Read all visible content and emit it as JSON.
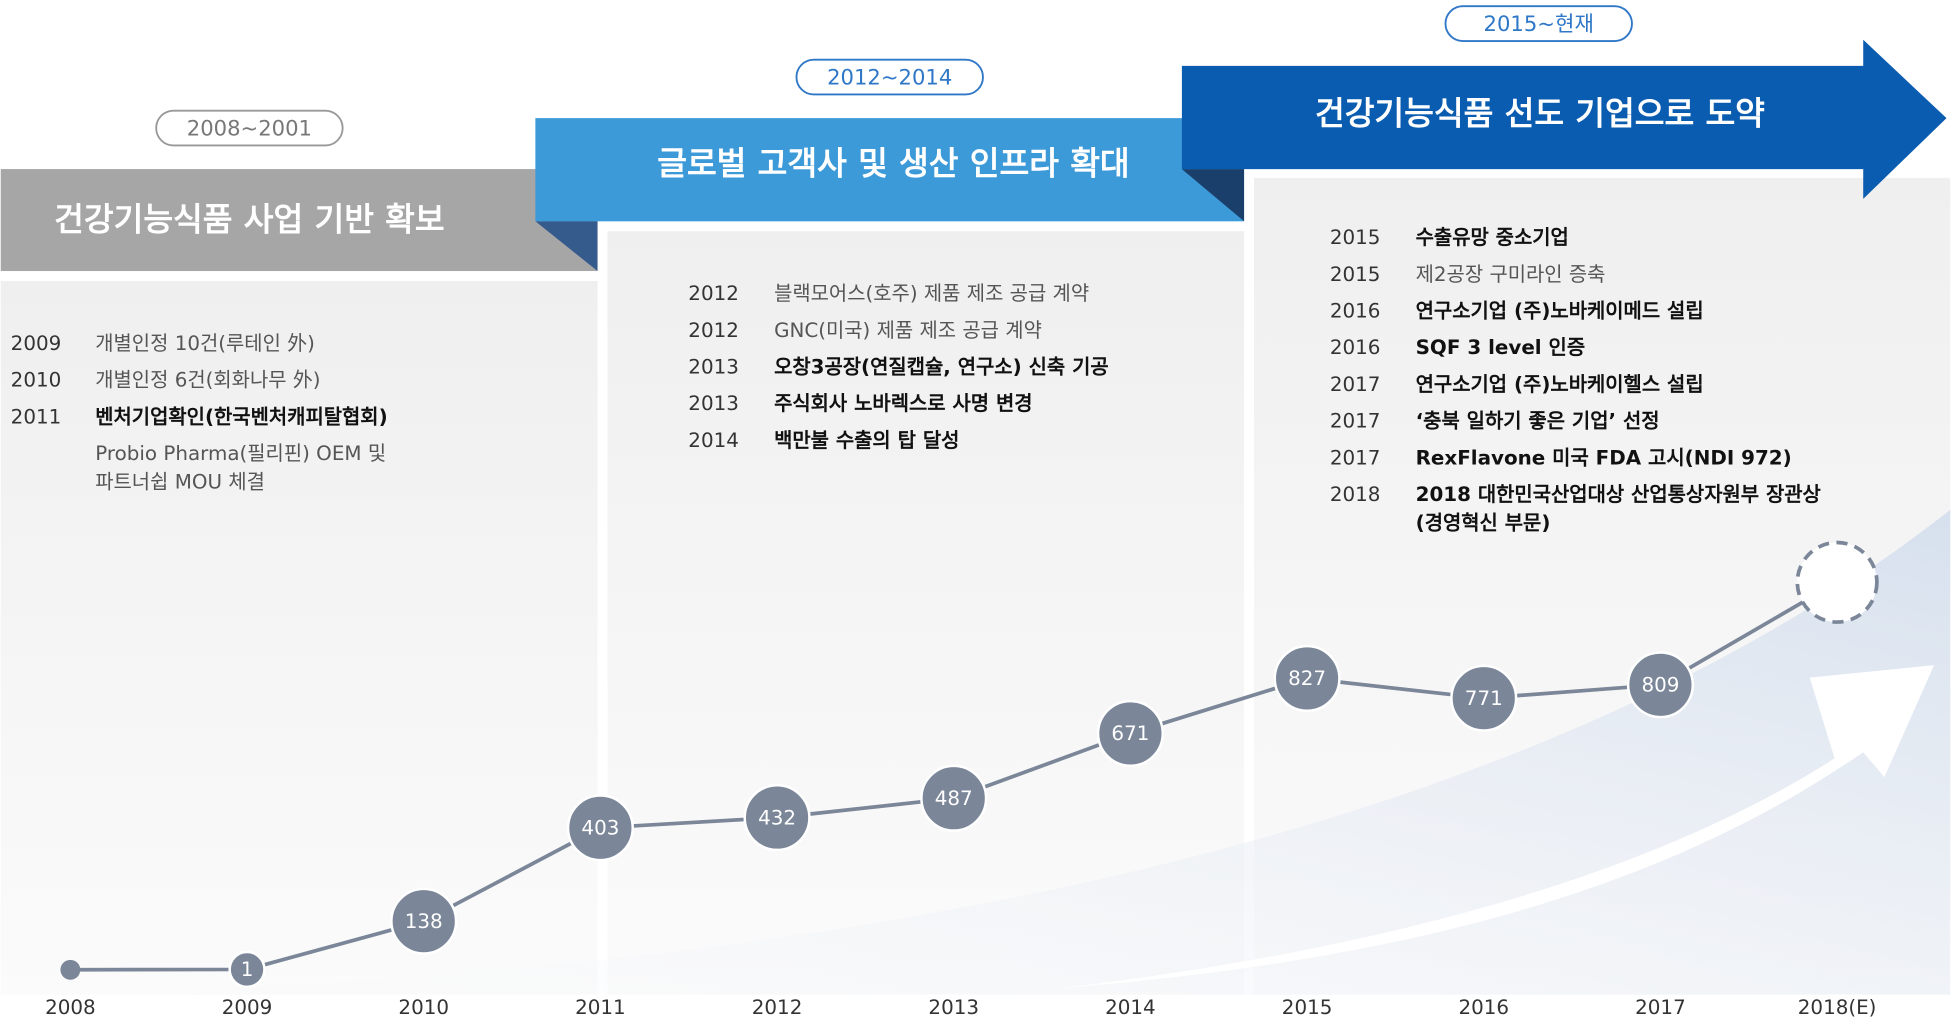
{
  "chart_data": {
    "type": "line",
    "categories": [
      "2008",
      "2009",
      "2010",
      "2011",
      "2012",
      "2013",
      "2014",
      "2015",
      "2016",
      "2017",
      "2018(E)"
    ],
    "values": [
      0,
      1,
      138,
      403,
      432,
      487,
      671,
      827,
      771,
      809,
      1100
    ],
    "value_labels": [
      null,
      "1",
      "138",
      "403",
      "432",
      "487",
      "671",
      "827",
      "771",
      "809",
      null
    ],
    "color": "#7b8799",
    "ylim": [
      0,
      1200
    ]
  },
  "timeline": [
    {
      "period": "2008~2001",
      "title": "건강기능식품 사업 기반 확보",
      "items": [
        {
          "year": "2009",
          "text": [
            "개별인정 10건(루테인 外)"
          ]
        },
        {
          "year": "2010",
          "text": [
            "개별인정 6건(회화나무 外)"
          ]
        },
        {
          "year": "2011",
          "text": [
            "벤처기업확인(한국벤처캐피탈협회)"
          ],
          "bold": true
        },
        {
          "text": [
            "Probio Pharma(필리핀) OEM 및",
            "파트너쉽 MOU 체결"
          ]
        }
      ]
    },
    {
      "period": "2012~2014",
      "title": "글로벌 고객사 및 생산 인프라 확대",
      "items": [
        {
          "year": "2012",
          "text": [
            "블랙모어스(호주) 제품 제조 공급 계약"
          ]
        },
        {
          "year": "2012",
          "text": [
            "GNC(미국) 제품 제조 공급 계약"
          ]
        },
        {
          "year": "2013",
          "text": [
            "오창3공장(연질캡슐, 연구소) 신축 기공"
          ],
          "bold": true
        },
        {
          "year": "2013",
          "text": [
            "주식회사 노바렉스로 사명 변경"
          ],
          "bold": true
        },
        {
          "year": "2014",
          "text": [
            "백만불 수출의 탑 달성"
          ],
          "bold": true
        }
      ]
    },
    {
      "period": "2015~현재",
      "title": "건강기능식품 선도 기업으로 도약",
      "items": [
        {
          "year": "2015",
          "text": [
            "수출유망 중소기업"
          ],
          "bold": true
        },
        {
          "year": "2015",
          "text": [
            "제2공장 구미라인 증축"
          ]
        },
        {
          "year": "2016",
          "text": [
            "연구소기업 (주)노바케이메드 설립"
          ],
          "bold": true
        },
        {
          "year": "2016",
          "text": [
            "SQF 3 level 인증"
          ],
          "bold": true
        },
        {
          "year": "2017",
          "text": [
            "연구소기업 (주)노바케이헬스 설립"
          ],
          "bold": true
        },
        {
          "year": "2017",
          "text": [
            "‘충북 일하기 좋은 기업’ 선정"
          ],
          "bold": true
        },
        {
          "year": "2017",
          "text": [
            "RexFlavone 미국 FDA 고시(NDI 972)"
          ],
          "bold": true
        },
        {
          "year": "2018",
          "text": [
            "2018 대한민국산업대상 산업통상자원부 장관상",
            "(경영혁신 부문)"
          ],
          "bold": true
        }
      ]
    }
  ]
}
